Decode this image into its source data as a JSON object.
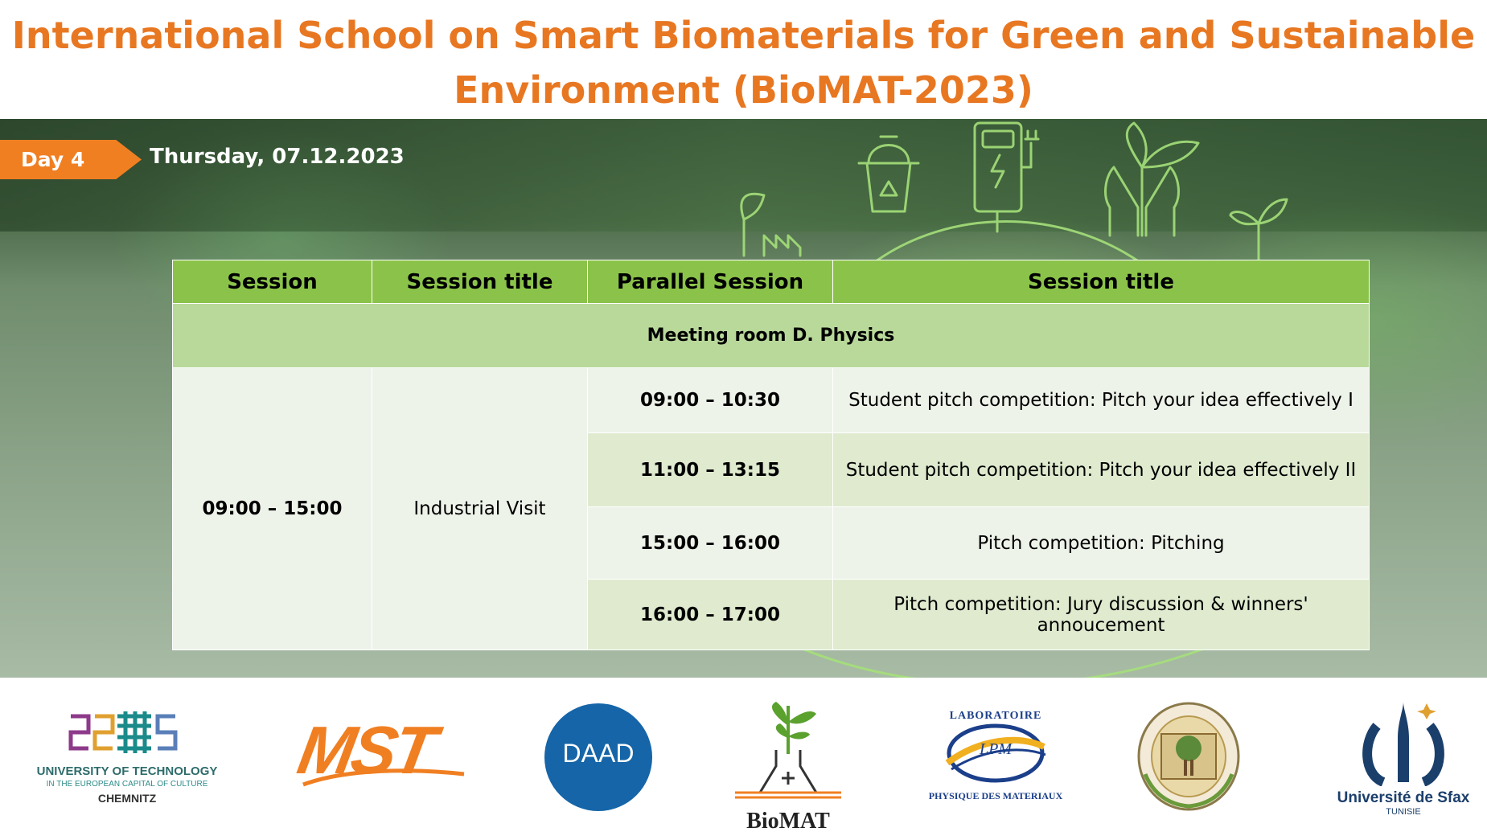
{
  "title_line1": "International School on Smart Biomaterials for Green and Sustainable",
  "title_line2": "Environment (BioMAT-2023)",
  "day_label": "Day 4",
  "date": "Thursday, 07.12.2023",
  "table": {
    "headers": [
      "Session",
      "Session title",
      "Parallel Session",
      "Session title"
    ],
    "room": "Meeting room D. Physics",
    "session_time": "09:00 – 15:00",
    "session_title": "Industrial Visit",
    "rows": [
      {
        "time": "09:00 – 10:30",
        "title": "Student pitch competition: Pitch your idea effectively I"
      },
      {
        "time": "11:00 – 13:15",
        "title": "Student pitch competition: Pitch your idea effectively II"
      },
      {
        "time": "15:00 – 16:00",
        "title": "Pitch competition: Pitching"
      },
      {
        "time": "16:00 – 17:00",
        "title": "Pitch competition: Jury discussion & winners' annoucement"
      }
    ]
  },
  "logos": {
    "chemnitz_line1": "UNIVERSITY OF TECHNOLOGY",
    "chemnitz_line2": "IN THE EUROPEAN CAPITAL OF CULTURE",
    "chemnitz_line3": "CHEMNITZ",
    "mst": "MST",
    "daad": "DAAD",
    "biomat": "BioMAT",
    "lpm_top": "LABORATOIRE",
    "lpm_center": "LPM",
    "lpm_bottom": "PHYSIQUE DES MATERIAUX",
    "sfax_name": "Université de Sfax",
    "sfax_country": "TUNISIE"
  },
  "colors": {
    "title_orange": "#e87722",
    "tag_orange": "#f07f22",
    "header_green": "#8bc34a",
    "room_green": "#b9d99a",
    "daad_blue": "#1565a8",
    "sfax_navy": "#1b3f6b"
  }
}
